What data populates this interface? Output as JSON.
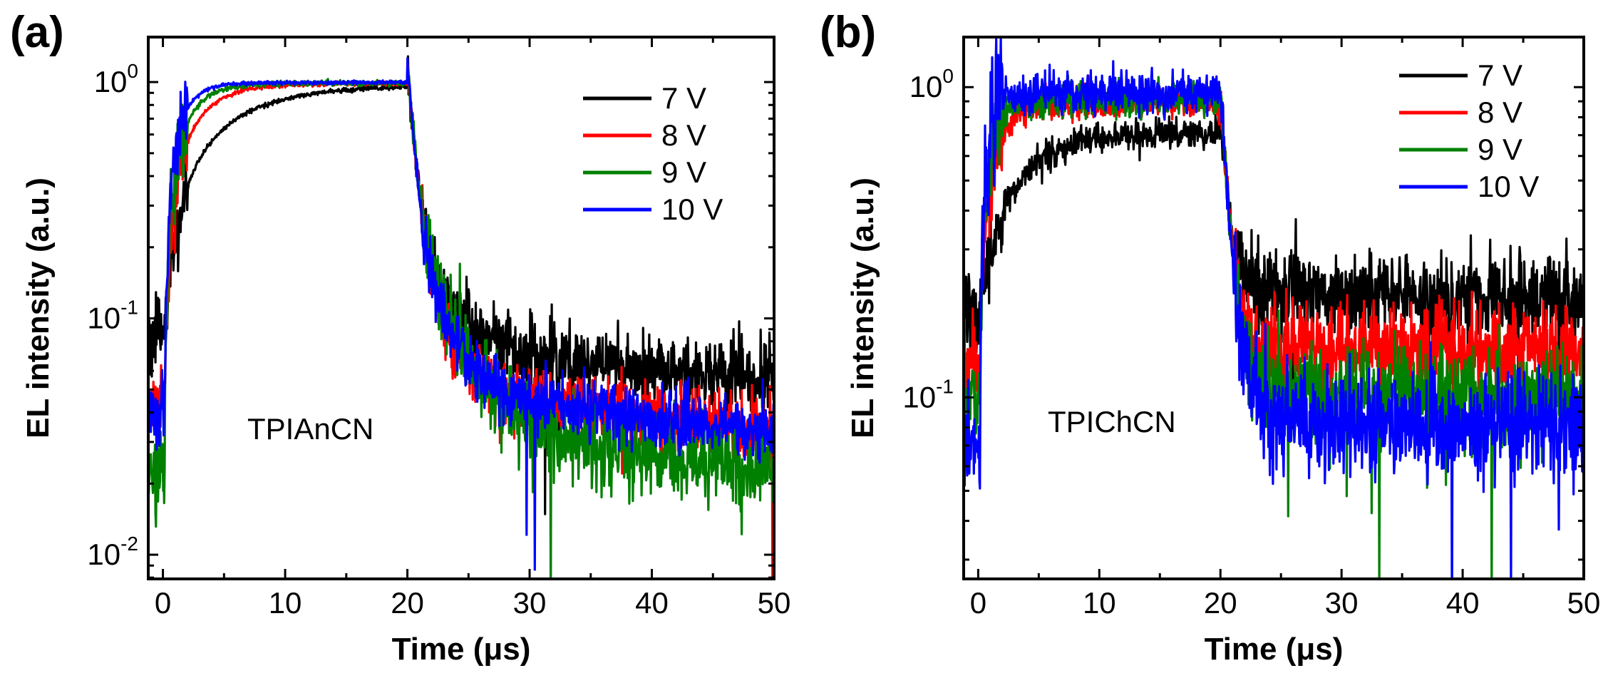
{
  "chart_data": [
    {
      "type": "line",
      "panel_label": "(a)",
      "annotation": "TPIAnCN",
      "xlabel": "Time (μs)",
      "ylabel": "EL intensity (a.u.)",
      "y_scale": "log",
      "xlim": [
        -1.2,
        50
      ],
      "ylim": [
        0.0079,
        1.55
      ],
      "x_ticks": [
        0,
        10,
        20,
        30,
        40,
        50
      ],
      "x_tick_labels": [
        "0",
        "10",
        "20",
        "30",
        "40",
        "50"
      ],
      "y_ticks": [
        {
          "value": 1,
          "base": "10",
          "exp": "0"
        },
        {
          "value": 0.1,
          "base": "10",
          "exp": "-1"
        },
        {
          "value": 0.01,
          "base": "10",
          "exp": "-2"
        }
      ],
      "legend": {
        "position": "top-right"
      },
      "pulse_off_time": 20,
      "series": [
        {
          "name": "7 V",
          "color": "#000000",
          "baseline": 0.085,
          "rise_tau": 5.0,
          "decay_floor": 0.072,
          "decay_tau": 2.0,
          "noise": 0.18
        },
        {
          "name": "8 V",
          "color": "#ff0000",
          "baseline": 0.045,
          "rise_tau": 2.4,
          "decay_floor": 0.045,
          "decay_tau": 2.0,
          "noise": 0.16
        },
        {
          "name": "9 V",
          "color": "#008000",
          "baseline": 0.022,
          "rise_tau": 1.7,
          "decay_floor": 0.03,
          "decay_tau": 3.0,
          "noise": 0.2
        },
        {
          "name": "10 V",
          "color": "#0000ff",
          "baseline": 0.04,
          "rise_tau": 1.3,
          "decay_floor": 0.045,
          "decay_tau": 2.0,
          "noise": 0.15
        }
      ]
    },
    {
      "type": "line",
      "panel_label": "(b)",
      "annotation": "TPIChCN",
      "xlabel": "Time (μs)",
      "ylabel": "EL intensity (a.u.)",
      "y_scale": "log",
      "xlim": [
        -1.2,
        50
      ],
      "ylim": [
        0.026,
        1.45
      ],
      "x_ticks": [
        0,
        10,
        20,
        30,
        40,
        50
      ],
      "x_tick_labels": [
        "0",
        "10",
        "20",
        "30",
        "40",
        "50"
      ],
      "y_ticks": [
        {
          "value": 1,
          "base": "10",
          "exp": "0"
        },
        {
          "value": 0.1,
          "base": "10",
          "exp": "-1"
        }
      ],
      "legend": {
        "position": "top-right"
      },
      "pulse_off_time": 20,
      "series": [
        {
          "name": "7 V",
          "color": "#000000",
          "baseline": 0.19,
          "rise_tau": 3.8,
          "decay_floor": 0.21,
          "decay_tau": 1.0,
          "noise": 0.16
        },
        {
          "name": "8 V",
          "color": "#ff0000",
          "baseline": 0.13,
          "rise_tau": 1.3,
          "decay_floor": 0.14,
          "decay_tau": 1.0,
          "noise": 0.17
        },
        {
          "name": "9 V",
          "color": "#008000",
          "baseline": 0.1,
          "rise_tau": 0.9,
          "decay_floor": 0.1,
          "decay_tau": 1.0,
          "noise": 0.18
        },
        {
          "name": "10 V",
          "color": "#0000ff",
          "baseline": 0.07,
          "rise_tau": 0.7,
          "decay_floor": 0.08,
          "decay_tau": 1.0,
          "noise": 0.2
        }
      ],
      "peaks": [
        0.72,
        0.88,
        0.91,
        0.96
      ]
    }
  ]
}
